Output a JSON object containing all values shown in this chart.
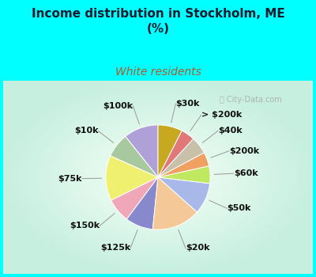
{
  "title": "Income distribution in Stockholm, ME\n(%)",
  "subtitle": "White residents",
  "title_color": "#1a1a2e",
  "subtitle_color": "#b05a2a",
  "background_color": "#00ffff",
  "chart_bg_center": "#f0faf5",
  "chart_bg_edge": "#c8eed8",
  "watermark": "City-Data.com",
  "labels": [
    "$100k",
    "$10k",
    "$75k",
    "$150k",
    "$125k",
    "$20k",
    "$50k",
    "$60k",
    "$200k",
    "$40k",
    "> $200k",
    "$30k"
  ],
  "values": [
    10,
    7,
    13,
    7,
    8,
    14,
    9,
    5,
    4,
    5,
    4,
    7
  ],
  "colors": [
    "#b0a0d8",
    "#a8c8a0",
    "#f0f070",
    "#f0a8b8",
    "#8888cc",
    "#f5c898",
    "#a8b8e8",
    "#c0e860",
    "#f0a060",
    "#c8c0a8",
    "#e07878",
    "#c8a820"
  ],
  "label_fontsize": 8,
  "title_fontsize": 11,
  "subtitle_fontsize": 10,
  "figsize": [
    4.0,
    3.5
  ],
  "dpi": 100
}
